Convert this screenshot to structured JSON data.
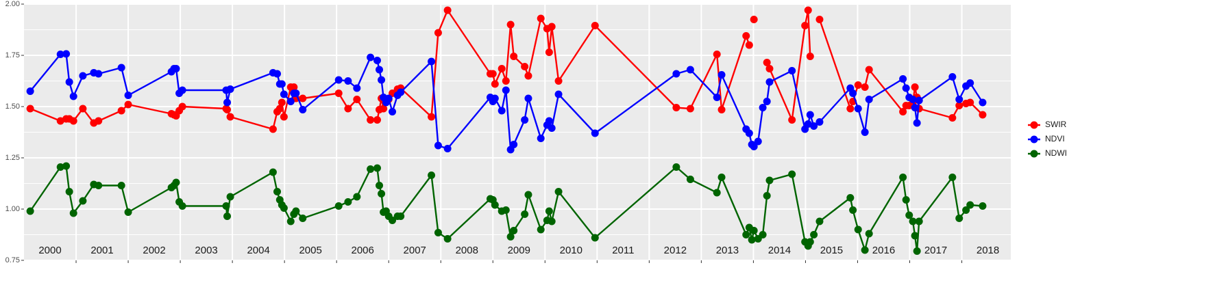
{
  "chart_data": {
    "type": "line",
    "x": [
      2000.12,
      2000.7,
      2000.81,
      2000.87,
      2000.95,
      2001.13,
      2001.34,
      2001.43,
      2001.87,
      2002.0,
      2002.83,
      2002.88,
      2002.92,
      2002.98,
      2003.04,
      2003.88,
      2003.9,
      2003.96,
      2004.78,
      2004.86,
      2004.91,
      2004.95,
      2004.99,
      2005.12,
      2005.18,
      2005.22,
      2005.35,
      2006.04,
      2006.22,
      2006.39,
      2006.65,
      2006.78,
      2006.82,
      2006.86,
      2006.9,
      2006.95,
      2007.0,
      2007.07,
      2007.17,
      2007.23,
      2007.82,
      2007.95,
      2008.13,
      2008.95,
      2009.0,
      2009.04,
      2009.17,
      2009.25,
      2009.34,
      2009.4,
      2009.61,
      2009.68,
      2009.92,
      2010.04,
      2010.08,
      2010.13,
      2010.26,
      2010.96,
      2012.52,
      2012.79,
      2013.3,
      2013.39,
      2013.86,
      2013.92,
      2013.97,
      2014.01,
      2014.09,
      2014.18,
      2014.26,
      2014.31,
      2014.74,
      2014.99,
      2015.05,
      2015.09,
      2015.16,
      2015.27,
      2015.86,
      2015.91,
      2016.01,
      2016.14,
      2016.22,
      2016.87,
      2016.93,
      2016.99,
      2017.06,
      2017.1,
      2017.14,
      2017.18,
      2017.82,
      2017.95,
      2018.08,
      2018.16,
      2018.4
    ],
    "series": [
      {
        "name": "SWIR",
        "color": "#ff0000",
        "values": [
          1.49,
          1.43,
          1.44,
          1.44,
          1.43,
          1.49,
          1.42,
          1.43,
          1.48,
          1.51,
          1.465,
          1.46,
          1.455,
          1.48,
          1.5,
          1.49,
          1.485,
          1.45,
          1.39,
          1.475,
          1.49,
          1.52,
          1.45,
          1.595,
          1.595,
          1.54,
          1.54,
          1.565,
          1.49,
          1.535,
          1.435,
          1.435,
          1.485,
          1.54,
          1.49,
          1.535,
          1.535,
          1.565,
          1.585,
          1.59,
          1.45,
          1.86,
          1.97,
          1.66,
          1.66,
          1.61,
          1.685,
          1.625,
          1.9,
          1.745,
          1.695,
          1.65,
          1.93,
          1.88,
          1.765,
          1.89,
          1.625,
          1.895,
          1.495,
          1.49,
          1.755,
          1.485,
          1.845,
          1.8,
          null,
          1.925,
          null,
          null,
          1.715,
          1.685,
          1.435,
          1.895,
          1.97,
          1.745,
          null,
          1.925,
          1.49,
          1.525,
          1.605,
          1.595,
          1.68,
          1.475,
          1.505,
          1.505,
          1.52,
          1.595,
          1.545,
          1.49,
          1.445,
          1.505,
          1.515,
          1.52,
          1.46
        ]
      },
      {
        "name": "NDVI",
        "color": "#0000ff",
        "values": [
          1.575,
          1.755,
          1.757,
          1.62,
          1.55,
          1.65,
          1.665,
          1.66,
          1.69,
          1.555,
          1.67,
          1.685,
          1.685,
          1.565,
          1.58,
          1.58,
          1.52,
          1.585,
          1.665,
          1.66,
          1.61,
          1.61,
          1.56,
          1.525,
          1.565,
          1.565,
          1.485,
          1.63,
          1.625,
          1.59,
          1.74,
          1.725,
          1.68,
          1.63,
          1.545,
          1.52,
          1.54,
          1.475,
          1.555,
          1.57,
          1.72,
          1.31,
          1.295,
          1.545,
          1.525,
          1.54,
          1.48,
          1.58,
          1.29,
          1.315,
          1.435,
          1.54,
          1.345,
          1.41,
          1.43,
          1.395,
          1.56,
          1.37,
          1.66,
          1.68,
          1.545,
          1.655,
          1.39,
          1.37,
          1.315,
          1.305,
          1.33,
          1.495,
          1.525,
          1.62,
          1.675,
          1.39,
          1.415,
          1.46,
          1.405,
          1.425,
          1.59,
          1.565,
          1.49,
          1.375,
          1.535,
          1.635,
          1.59,
          1.545,
          1.535,
          1.495,
          1.42,
          1.53,
          1.645,
          1.535,
          1.6,
          1.615,
          1.52
        ]
      },
      {
        "name": "NDWI",
        "color": "#006400",
        "values": [
          0.99,
          1.205,
          1.21,
          1.085,
          0.98,
          1.04,
          1.12,
          1.115,
          1.115,
          0.985,
          1.105,
          1.115,
          1.13,
          1.035,
          1.015,
          1.015,
          0.965,
          1.06,
          1.18,
          1.085,
          1.045,
          1.02,
          1.005,
          0.94,
          0.975,
          0.99,
          0.955,
          1.015,
          1.035,
          1.06,
          1.195,
          1.2,
          1.115,
          1.075,
          0.985,
          0.99,
          0.965,
          0.945,
          0.965,
          0.965,
          1.165,
          0.885,
          0.855,
          1.05,
          1.045,
          1.02,
          0.99,
          0.995,
          0.865,
          0.895,
          0.975,
          1.07,
          0.9,
          0.945,
          0.99,
          0.94,
          1.085,
          0.86,
          1.205,
          1.145,
          1.08,
          1.155,
          0.875,
          0.91,
          0.85,
          0.895,
          0.855,
          0.875,
          1.065,
          1.14,
          1.17,
          0.84,
          0.82,
          0.84,
          0.875,
          0.94,
          1.055,
          0.995,
          0.9,
          0.8,
          0.88,
          1.155,
          1.045,
          0.97,
          0.94,
          0.87,
          0.795,
          0.94,
          1.155,
          0.955,
          0.995,
          1.02,
          1.015
        ]
      }
    ],
    "xlim": [
      2000,
      2018.94
    ],
    "ylim": [
      0.75,
      2.0
    ],
    "yticks": [
      0.75,
      {
        "value": 1.0,
        "label": "1.00"
      },
      1.25,
      {
        "value": 1.5,
        "label": "1.50"
      },
      1.75,
      {
        "value": 2.0,
        "label": "2.00"
      }
    ],
    "xgrid": [
      2001,
      2002,
      2003,
      2004,
      2005,
      2006,
      2007,
      2008,
      2009,
      2010,
      2011,
      2012,
      2013,
      2014,
      2015,
      2016,
      2017,
      2018
    ],
    "xticks": [
      {
        "value": 2000.5,
        "label": "2000"
      },
      {
        "value": 2001.5,
        "label": "2001"
      },
      {
        "value": 2002.5,
        "label": "2002"
      },
      {
        "value": 2003.5,
        "label": "2003"
      },
      {
        "value": 2004.5,
        "label": "2004"
      },
      {
        "value": 2005.5,
        "label": "2005"
      },
      {
        "value": 2006.5,
        "label": "2006"
      },
      {
        "value": 2007.5,
        "label": "2007"
      },
      {
        "value": 2008.5,
        "label": "2008"
      },
      {
        "value": 2009.5,
        "label": "2009"
      },
      {
        "value": 2010.5,
        "label": "2010"
      },
      {
        "value": 2011.5,
        "label": "2011"
      },
      {
        "value": 2012.5,
        "label": "2012"
      },
      {
        "value": 2013.5,
        "label": "2013"
      },
      {
        "value": 2014.5,
        "label": "2014"
      },
      {
        "value": 2015.5,
        "label": "2015"
      },
      {
        "value": 2016.5,
        "label": "2016"
      },
      {
        "value": 2017.5,
        "label": "2017"
      },
      {
        "value": 2018.5,
        "label": "2018"
      }
    ],
    "grid": true,
    "legend": "right"
  }
}
